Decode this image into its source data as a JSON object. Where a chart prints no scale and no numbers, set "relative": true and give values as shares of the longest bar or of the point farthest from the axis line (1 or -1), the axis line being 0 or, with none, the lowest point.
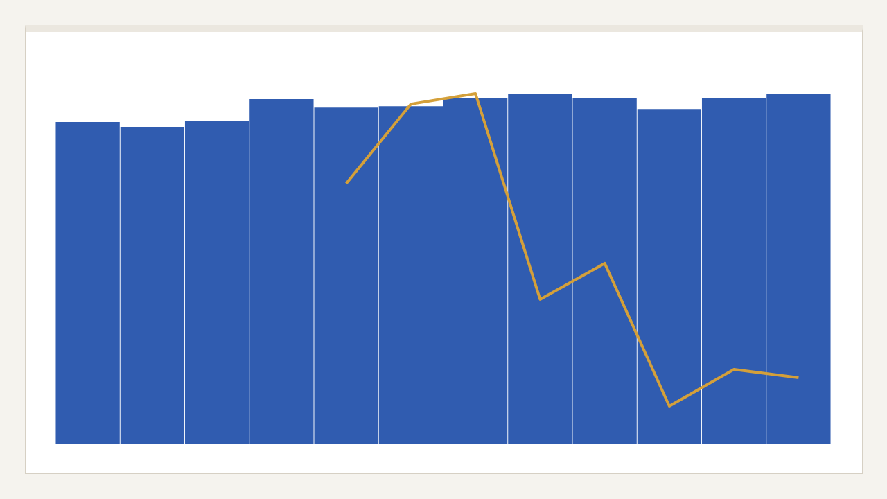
{
  "chart_data": [
    {
      "type": "bar",
      "relative": true,
      "categories": [
        null,
        null,
        null,
        null,
        null,
        null,
        null,
        null,
        null,
        null,
        null,
        null
      ],
      "series": [
        {
          "color": "#305cb0",
          "values": [
            0.919,
            0.905,
            0.923,
            0.984,
            0.96,
            0.964,
            0.988,
            1,
            0.986,
            0.956,
            0.986,
            0.998
          ]
        }
      ],
      "grid": false
    },
    {
      "type": "line",
      "relative": true,
      "categories": [
        null,
        null,
        null,
        null,
        null,
        null,
        null,
        null
      ],
      "series": [
        {
          "color": "#d4a03a",
          "values": [
            0.743,
            0.97,
            1,
            0.412,
            0.515,
            0.107,
            0.212,
            0.188
          ]
        }
      ],
      "marker": "none",
      "line_style": "solid",
      "grid": false
    }
  ]
}
